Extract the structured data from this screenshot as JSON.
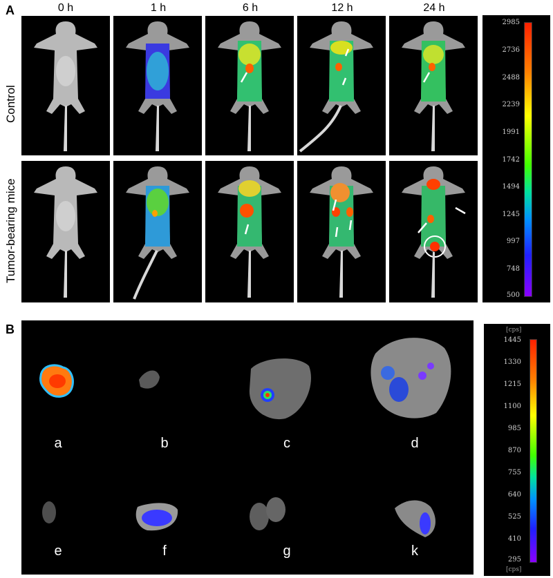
{
  "panels": {
    "a": {
      "letter": "A",
      "columns": [
        "0 h",
        "1 h",
        "6 h",
        "12 h",
        "24 h"
      ],
      "rows": [
        "Control",
        "Tumor-bearing mice"
      ],
      "scale_ticks": [
        "2985",
        "2736",
        "2488",
        "2239",
        "1991",
        "1742",
        "1494",
        "1245",
        "997",
        "748",
        "500"
      ]
    },
    "b": {
      "letter": "B",
      "organs": [
        "a",
        "b",
        "c",
        "d",
        "e",
        "f",
        "g",
        "k"
      ],
      "scale_unit": "[cps]",
      "scale_ticks": [
        "1445",
        "1330",
        "1215",
        "1100",
        "985",
        "870",
        "755",
        "640",
        "525",
        "410",
        "295"
      ]
    }
  },
  "colors": {
    "scale_top": "#ff2000",
    "scale_bottom": "#8a00ff",
    "tile_bg": "#000000"
  }
}
